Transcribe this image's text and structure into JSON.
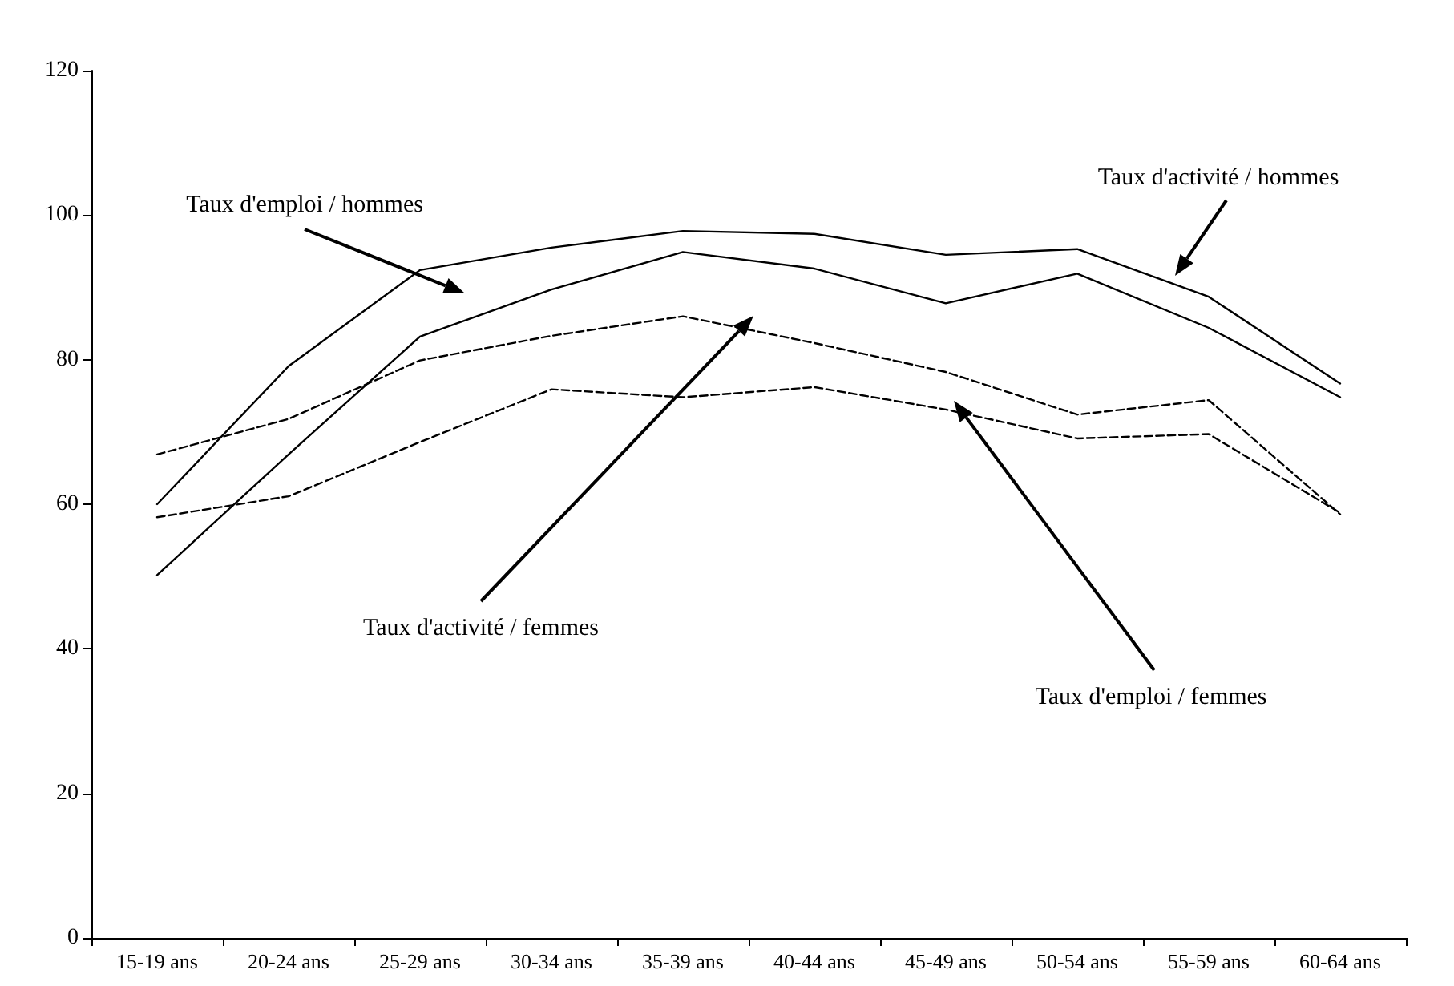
{
  "chart_data": {
    "type": "line",
    "categories": [
      "15-19 ans",
      "20-24 ans",
      "25-29 ans",
      "30-34 ans",
      "35-39 ans",
      "40-44 ans",
      "45-49 ans",
      "50-54 ans",
      "55-59 ans",
      "60-64 ans"
    ],
    "ylim": [
      0,
      120
    ],
    "yticks": [
      0,
      20,
      40,
      60,
      80,
      100,
      120
    ],
    "grid": false,
    "legend": false,
    "marker": "none",
    "series": [
      {
        "name": "Taux d'activité / hommes",
        "color": "#000000",
        "line_style": "solid",
        "values": [
          60.0,
          79.1,
          92.4,
          95.5,
          97.8,
          97.4,
          94.5,
          95.3,
          88.7,
          76.7
        ]
      },
      {
        "name": "Taux d'emploi / hommes",
        "color": "#000000",
        "line_style": "solid",
        "values": [
          50.2,
          66.9,
          83.2,
          89.7,
          94.9,
          92.6,
          87.8,
          91.9,
          84.4,
          74.8
        ]
      },
      {
        "name": "Taux d'activité / femmes",
        "color": "#000000",
        "line_style": "dashed",
        "values": [
          66.9,
          71.8,
          79.9,
          83.3,
          86.0,
          82.3,
          78.3,
          72.4,
          74.4,
          58.6
        ]
      },
      {
        "name": "Taux d'emploi / femmes",
        "color": "#000000",
        "line_style": "dashed",
        "values": [
          58.2,
          61.1,
          68.6,
          75.9,
          74.8,
          76.2,
          73.1,
          69.1,
          69.7,
          58.8
        ]
      }
    ]
  }
}
